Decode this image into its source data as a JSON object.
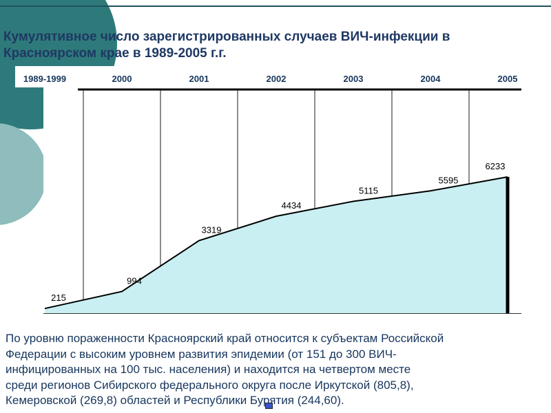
{
  "slide": {
    "title": "Кумулятивное число зарегистрированных случаев ВИЧ-инфекции в\nКрасноярском крае в 1989-2005 г.г.",
    "body_text": "По уровню пораженности Красноярский край относится к субъектам Российской\nФедерации с высоким уровнем развития эпидемии (от 151 до 300 ВИЧ-\nинфицированных на 100 тыс. населения) и находится на четвертом месте\nсреди регионов Сибирского федерального округа после Иркутской (805,8),\nКемеровской (269,8) областей и Республики Бурятия (244,60)."
  },
  "chart_data": {
    "type": "area",
    "title": "Кумулятивное число зарегистрированных случаев ВИЧ-инфекции в Красноярском крае в 1989-2005 г.г.",
    "categories": [
      "1989-1999",
      "2000",
      "2001",
      "2002",
      "2003",
      "2004",
      "2005"
    ],
    "values": [
      215,
      994,
      3319,
      4434,
      5115,
      5595,
      6233
    ],
    "xlabel": "",
    "ylabel": "",
    "ylim": [
      0,
      6300
    ],
    "grid": "vertical",
    "legend": "none",
    "value_labels_visible": true,
    "fill_color": "#c9eff2",
    "line_color": "#000000",
    "data_label_color": "#000000",
    "axis_label_color": "#17365d"
  },
  "decor": {
    "circle_dark_color": "#2e7a7a",
    "circle_light_color": "#8fbcbc",
    "top_rule_color": "#20505f",
    "title_color": "#1f3864",
    "body_color": "#17365d",
    "accent_marker_color": "#3a53c4"
  }
}
